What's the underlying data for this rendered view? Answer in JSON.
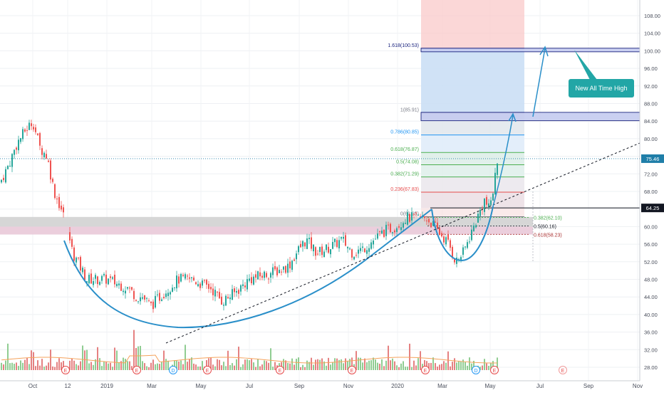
{
  "colors": {
    "up": "#26a69a",
    "down": "#ef5350",
    "vol_up": "#7cc47f",
    "vol_down": "#e06b6b",
    "cup": "#2a8fc9",
    "target_arrow": "#2a8fc9",
    "callout_bg": "#22a6a6",
    "price_tag": "#1f7ea8",
    "level_tag": "#131722",
    "fib_red": "#e64a4a",
    "fib_green": "#4caf50",
    "fib_blue": "#2196f3",
    "fib_gray": "#787b86",
    "ma_volume": "#f5a35c"
  },
  "axes": {
    "y_ticks": [
      "28.00",
      "32.00",
      "36.00",
      "40.00",
      "44.00",
      "48.00",
      "52.00",
      "56.00",
      "60.00",
      "64.00",
      "68.00",
      "72.00",
      "76.00",
      "80.00",
      "84.00",
      "88.00",
      "92.00",
      "96.00",
      "100.00",
      "104.00",
      "108.00"
    ],
    "x_ticks": [
      "Oct",
      "12",
      "2019",
      "Mar",
      "May",
      "Jul",
      "Sep",
      "Nov",
      "2020",
      "Mar",
      "May",
      "Jul",
      "Sep",
      "Nov"
    ],
    "current_price": "75.46",
    "level_price": "64.25"
  },
  "annotations": {
    "callout": "New All Time High",
    "earnings_marker": "E",
    "dividend_marker": "D"
  },
  "fib_extension": [
    {
      "label": "1.618(100.53)",
      "value": 100.53
    },
    {
      "label": "1(85.91)",
      "value": 85.91
    },
    {
      "label": "0.786(80.85)",
      "value": 80.85
    },
    {
      "label": "0.618(76.87)",
      "value": 76.87
    },
    {
      "label": "0.5(74.08)",
      "value": 74.08
    },
    {
      "label": "0.382(71.29)",
      "value": 71.29
    },
    {
      "label": "0.236(67.83)",
      "value": 67.83
    },
    {
      "label": "0(62.25)",
      "value": 62.25
    }
  ],
  "fib_retracement": [
    {
      "label": "0.382(62.10)",
      "value": 62.1
    },
    {
      "label": "0.5(60.16)",
      "value": 60.16
    },
    {
      "label": "0.618(58.23)",
      "value": 58.23
    }
  ],
  "chart_data": {
    "type": "candlestick",
    "y_scale": "linear",
    "ylim": [
      26,
      112
    ],
    "grid": true,
    "monthly_closes": [
      {
        "month": "2018-09",
        "close": 74
      },
      {
        "month": "2018-10",
        "close": 82
      },
      {
        "month": "2018-11",
        "close": 59
      },
      {
        "month": "2018-12",
        "close": 47
      },
      {
        "month": "2019-01",
        "close": 48
      },
      {
        "month": "2019-02",
        "close": 45
      },
      {
        "month": "2019-03",
        "close": 42
      },
      {
        "month": "2019-04",
        "close": 48
      },
      {
        "month": "2019-05",
        "close": 45
      },
      {
        "month": "2019-06",
        "close": 46
      },
      {
        "month": "2019-07",
        "close": 48
      },
      {
        "month": "2019-08",
        "close": 50
      },
      {
        "month": "2019-09",
        "close": 56
      },
      {
        "month": "2019-10",
        "close": 54
      },
      {
        "month": "2019-11",
        "close": 54
      },
      {
        "month": "2019-12",
        "close": 59
      },
      {
        "month": "2020-01",
        "close": 62
      },
      {
        "month": "2020-02",
        "close": 59
      },
      {
        "month": "2020-03",
        "close": 55
      },
      {
        "month": "2020-04",
        "close": 66
      },
      {
        "month": "2020-05",
        "close": 75.46
      }
    ]
  }
}
